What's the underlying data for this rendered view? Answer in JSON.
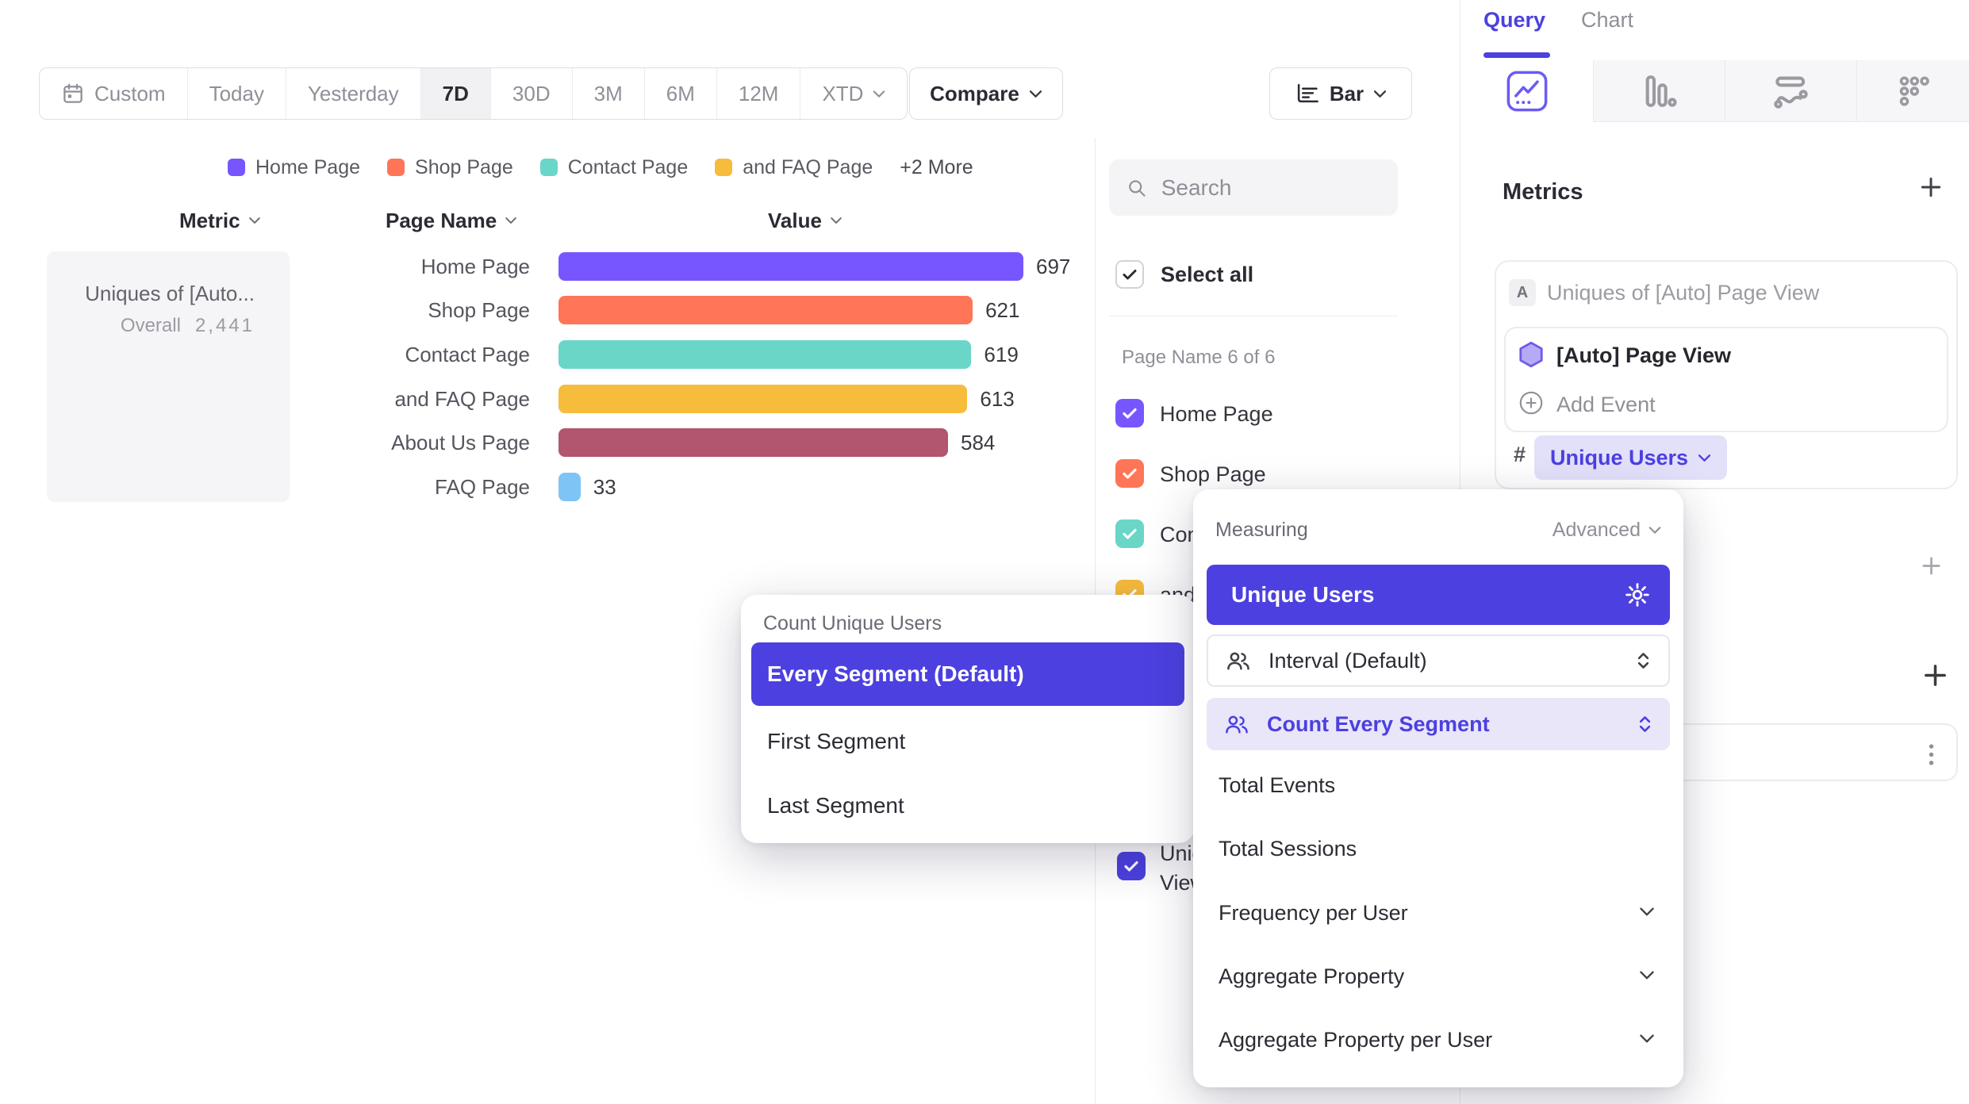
{
  "toolbar": {
    "ranges": [
      {
        "label": "Custom"
      },
      {
        "label": "Today"
      },
      {
        "label": "Yesterday"
      },
      {
        "label": "7D",
        "selected": true
      },
      {
        "label": "30D"
      },
      {
        "label": "3M"
      },
      {
        "label": "6M"
      },
      {
        "label": "12M"
      },
      {
        "label": "XTD"
      }
    ],
    "compare_label": "Compare",
    "chart_type_label": "Bar"
  },
  "legend": {
    "items": [
      {
        "label": "Home Page",
        "color": "#7856FF"
      },
      {
        "label": "Shop Page",
        "color": "#FF7557"
      },
      {
        "label": "Contact Page",
        "color": "#69D6C8"
      },
      {
        "label": "and FAQ Page",
        "color": "#F6BC3C"
      }
    ],
    "more_label": "+2 More"
  },
  "table": {
    "headers": [
      "Metric",
      "Page Name",
      "Value"
    ]
  },
  "chart_data": {
    "type": "bar",
    "orientation": "horizontal",
    "title": "Uniques of [Auto] Page View",
    "categories": [
      "Home Page",
      "Shop Page",
      "Contact Page",
      "and FAQ Page",
      "About Us Page",
      "FAQ Page"
    ],
    "values": [
      697,
      621,
      619,
      613,
      584,
      33
    ],
    "colors": [
      "#7856FF",
      "#FF7557",
      "#69D6C8",
      "#F6BC3C",
      "#B2556E",
      "#7EC4F5"
    ],
    "xlim": [
      0,
      697
    ],
    "value_labels": true,
    "metric_cell": {
      "title": "Uniques of [Auto...",
      "overall_label": "Overall",
      "overall_value": "2,441"
    }
  },
  "segment_panel": {
    "search_placeholder": "Search",
    "select_all_label": "Select all",
    "group_label": "Page Name 6 of 6",
    "items": [
      {
        "label": "Home Page",
        "color": "#7856FF",
        "checked": true
      },
      {
        "label": "Shop Page",
        "color": "#FF7557",
        "checked": true
      },
      {
        "label": "Contact Page",
        "color": "#69D6C8",
        "checked": true
      },
      {
        "label": "and FAQ Page",
        "color": "#F6BC3C",
        "checked": true
      }
    ],
    "metric_item": {
      "label": "Uniques of [Auto] Page View",
      "color": "#4C40E0",
      "checked": true
    }
  },
  "query_panel": {
    "tabs": [
      {
        "label": "Query",
        "active": true
      },
      {
        "label": "Chart",
        "active": false
      }
    ],
    "report_tabs": [
      "insights",
      "funnels",
      "flows",
      "retention"
    ],
    "metrics_heading": "Metrics",
    "metric_card": {
      "badge": "A",
      "title": "Uniques of [Auto] Page View",
      "event_label": "[Auto] Page View",
      "add_event_label": "Add Event",
      "hash": "#",
      "measure_label": "Unique Users"
    }
  },
  "measuring_popup": {
    "title": "Measuring",
    "advanced_label": "Advanced",
    "selected_option": "Unique Users",
    "interval_label": "Interval (Default)",
    "count_segment_label": "Count Every Segment",
    "options": [
      "Total Events",
      "Total Sessions",
      "Frequency per User",
      "Aggregate Property",
      "Aggregate Property per User"
    ]
  },
  "count_popup": {
    "title": "Count Unique Users",
    "options": [
      {
        "label": "Every Segment (Default)",
        "selected": true
      },
      {
        "label": "First Segment",
        "selected": false
      },
      {
        "label": "Last Segment",
        "selected": false
      }
    ]
  },
  "colors": {
    "accent": "#4C40E0",
    "brand_purple": "#7856FF",
    "pill_bg": "#E3E0FA",
    "lavender_row_bg": "#E9E6FA",
    "selected_bg": "#4C40E0"
  }
}
